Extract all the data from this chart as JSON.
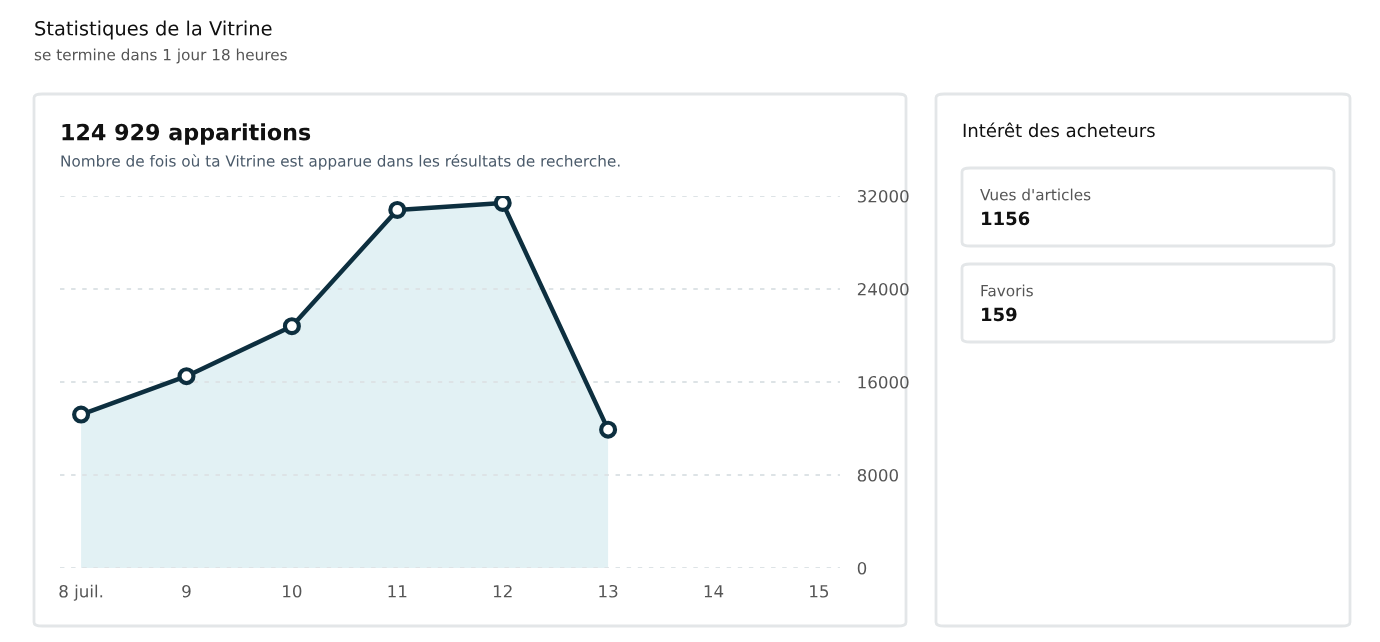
{
  "chart_data": [
    {
      "type": "area",
      "title": "Statistiques de la Vitrine",
      "subtitle": "se termine dans 1 jour 18 heures",
      "annotations": [
        "124 929 apparitions",
        "Nombre de fois où ta Vitrine est apparue dans les résultats de recherche."
      ],
      "categories": [
        "8 juil.",
        "9",
        "10",
        "11",
        "12",
        "13",
        "14",
        "15"
      ],
      "series": [
        {
          "color": "#0d2f3f",
          "values": [
            13200,
            16500,
            20800,
            30800,
            31400,
            11900,
            null,
            null
          ]
        }
      ],
      "ylim": [
        0,
        32000
      ],
      "yticks": [
        0,
        8000,
        16000,
        24000,
        32000
      ],
      "grid": "y",
      "marker": "circle",
      "line_style": "solid"
    },
    {
      "type": "other",
      "title": "Intérêt des acheteurs",
      "annotations": [
        "Vues d'articles",
        "1156",
        "Favoris",
        "159"
      ]
    }
  ]
}
